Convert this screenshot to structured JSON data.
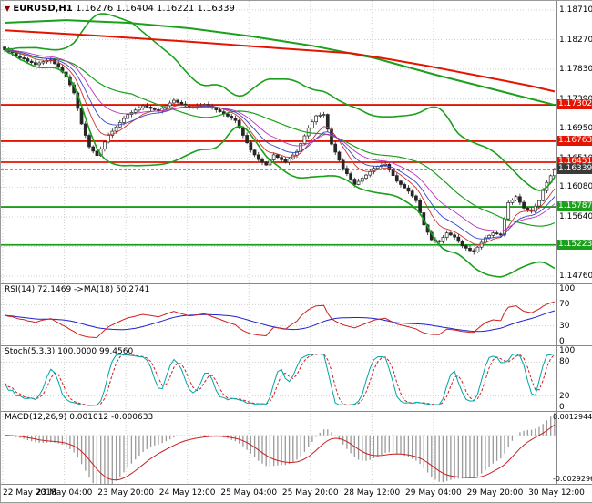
{
  "window": {
    "symbol": "EURUSD,H1",
    "ohlc": "1.16276 1.16404 1.16221 1.16339"
  },
  "colors": {
    "up_candle": "#ffffff",
    "down_candle": "#262626",
    "ma_fast": "#cc3333",
    "ma_mid": "#3344cc",
    "ma_slow": "#bb33bb",
    "band": "#1aa01a",
    "trend": "#e51400",
    "level_green": "#1aa01a",
    "stoch_k": "#00a5a5",
    "signal_red": "#cc2020",
    "rsi_line": "#cc2020",
    "rsi_ma": "#2020cc",
    "hist": "#9a9a9a",
    "grid": "#cfcfcf",
    "separator": "#888888",
    "bid_tag": "#3a3a3a"
  },
  "chart_data": {
    "type": "candlestick",
    "symbol": "EURUSD",
    "timeframe": "H1",
    "current_ohlc": {
      "open": 1.16276,
      "high": 1.16404,
      "low": 1.16221,
      "close": 1.16339
    },
    "axis_top_value": 1.1871,
    "axis_bottom_value": 1.1476,
    "price_axis": [
      "1.18710",
      "1.18270",
      "1.17830",
      "1.17390",
      "1.16950",
      "1.16510",
      "1.16080",
      "1.15640",
      "1.15200",
      "1.14760"
    ],
    "x_labels": [
      "22 May 2018",
      "23 May 04:00",
      "23 May 20:00",
      "24 May 12:00",
      "25 May 04:00",
      "25 May 20:00",
      "28 May 12:00",
      "29 May 04:00",
      "29 May 20:00",
      "30 May 12:00"
    ],
    "closes": [
      1.1812,
      1.1809,
      1.18075,
      1.1803,
      1.18,
      1.17985,
      1.1795,
      1.1793,
      1.179,
      1.17925,
      1.17945,
      1.17955,
      1.1797,
      1.17915,
      1.1786,
      1.1779,
      1.1772,
      1.176,
      1.1748,
      1.1725,
      1.1702,
      1.1685,
      1.1668,
      1.16615,
      1.1655,
      1.1665,
      1.1675,
      1.1685,
      1.1691,
      1.16975,
      1.1704,
      1.171,
      1.1716,
      1.1719,
      1.17225,
      1.1726,
      1.1729,
      1.1727,
      1.1725,
      1.1723,
      1.1721,
      1.1725,
      1.1729,
      1.1733,
      1.1737,
      1.1734,
      1.17315,
      1.1729,
      1.1726,
      1.17273,
      1.17285,
      1.17298,
      1.1731,
      1.17283,
      1.17255,
      1.17228,
      1.172,
      1.17168,
      1.17135,
      1.17103,
      1.1707,
      1.1696,
      1.1685,
      1.1674,
      1.1663,
      1.1656,
      1.1649,
      1.1645,
      1.1641,
      1.16485,
      1.1656,
      1.16523,
      1.16487,
      1.1645,
      1.16503,
      1.16557,
      1.1661,
      1.16727,
      1.16843,
      1.1696,
      1.1705,
      1.1714,
      1.1715,
      1.1716,
      1.1694,
      1.1672,
      1.166,
      1.1648,
      1.1636,
      1.1628,
      1.162,
      1.1612,
      1.16167,
      1.16213,
      1.1626,
      1.1631,
      1.1636,
      1.1639,
      1.16405,
      1.1642,
      1.16337,
      1.16253,
      1.1617,
      1.1612,
      1.1607,
      1.1602,
      1.1595,
      1.1588,
      1.157,
      1.1552,
      1.1541,
      1.153,
      1.15285,
      1.1527,
      1.15335,
      1.154,
      1.1537,
      1.1534,
      1.15275,
      1.1521,
      1.15175,
      1.1514,
      1.1512,
      1.1519,
      1.1526,
      1.1533,
      1.15365,
      1.154,
      1.15385,
      1.1537,
      1.1561,
      1.1585,
      1.1589,
      1.1594,
      1.15855,
      1.1577,
      1.15745,
      1.1572,
      1.158,
      1.1588,
      1.1603,
      1.1615,
      1.1625,
      1.16339
    ],
    "levels": [
      {
        "label": "1.17302",
        "price": 1.17302,
        "color": "#e51400"
      },
      {
        "label": "1.16763",
        "price": 1.16763,
        "color": "#e51400"
      },
      {
        "label": "1.16451",
        "price": 1.16451,
        "color": "#e51400"
      },
      {
        "label": "1.15787",
        "price": 1.15787,
        "color": "#1aa01a"
      },
      {
        "label": "1.15223",
        "price": 1.15223,
        "color": "#1aa01a"
      }
    ],
    "bid": {
      "label": "1.16339",
      "price": 1.16339
    },
    "overlays": {
      "bollinger_period": 34,
      "ema_periods": [
        8,
        13,
        21
      ],
      "red_ma_points": [
        [
          0,
          1.1841
        ],
        [
          24,
          1.1833
        ],
        [
          48,
          1.1824
        ],
        [
          72,
          1.1814
        ],
        [
          90,
          1.1807
        ],
        [
          100,
          1.1798
        ],
        [
          110,
          1.1788
        ],
        [
          120,
          1.1777
        ],
        [
          130,
          1.1766
        ],
        [
          137,
          1.1758
        ],
        [
          143,
          1.175
        ]
      ],
      "green_ma_points": [
        [
          0,
          1.1852
        ],
        [
          16,
          1.1856
        ],
        [
          32,
          1.1852
        ],
        [
          48,
          1.1844
        ],
        [
          64,
          1.1832
        ],
        [
          80,
          1.1818
        ],
        [
          96,
          1.18
        ],
        [
          112,
          1.1775
        ],
        [
          128,
          1.1752
        ],
        [
          143,
          1.173
        ]
      ]
    },
    "indicators": {
      "rsi": {
        "label": "RSI(14) 72.1469 ->MA(18) 50.2741",
        "period": 14,
        "ma_period": 18,
        "last_rsi": 72.1469,
        "last_ma": 50.2741,
        "axis": [
          "100",
          "70",
          "30",
          "0"
        ],
        "guide_levels": [
          70,
          30
        ]
      },
      "stoch": {
        "label": "Stoch(5,3,3) 100.0000 99.4560",
        "last_k": 100.0,
        "last_d": 99.456,
        "axis": [
          "100",
          "80",
          "20",
          "0"
        ],
        "guide_levels": [
          80,
          20
        ]
      },
      "macd": {
        "label": "MACD(12,26,9) 0.001012 -0.000633",
        "last_main": 0.001012,
        "last_signal": -0.000633,
        "axis_top": "0.0012944",
        "axis_bottom": "-0.0029296"
      }
    }
  }
}
